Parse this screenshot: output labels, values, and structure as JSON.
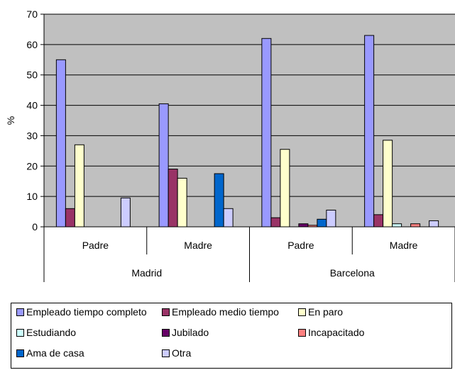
{
  "chart_data": {
    "type": "bar",
    "ylabel": "%",
    "ylim": [
      0,
      70
    ],
    "yticks": [
      0,
      10,
      20,
      30,
      40,
      50,
      60,
      70
    ],
    "grid": "horizontal",
    "legend_position": "bottom",
    "groups": [
      {
        "city": "Madrid",
        "subgroups": [
          "Padre",
          "Madre"
        ]
      },
      {
        "city": "Barcelona",
        "subgroups": [
          "Padre",
          "Madre"
        ]
      }
    ],
    "categories": [
      "Padre",
      "Madre",
      "Padre",
      "Madre"
    ],
    "series": [
      {
        "name": "Empleado tiempo completo",
        "color": "#9999ff",
        "values": [
          55,
          40.5,
          62,
          63
        ]
      },
      {
        "name": "Empleado medio tiempo",
        "color": "#993366",
        "values": [
          6,
          19,
          3,
          4
        ]
      },
      {
        "name": "En paro",
        "color": "#ffffcc",
        "values": [
          27,
          16,
          25.5,
          28.5
        ]
      },
      {
        "name": "Estudiando",
        "color": "#ccffff",
        "values": [
          0,
          0,
          0,
          1
        ]
      },
      {
        "name": "Jubilado",
        "color": "#660066",
        "values": [
          0,
          0,
          1,
          0
        ]
      },
      {
        "name": "Incapacitado",
        "color": "#ff8080",
        "values": [
          0,
          0,
          0.5,
          1
        ]
      },
      {
        "name": "Ama de casa",
        "color": "#0066cc",
        "values": [
          0,
          17.5,
          2.5,
          0
        ]
      },
      {
        "name": "Otra",
        "color": "#ccccff",
        "values": [
          9.5,
          6,
          5.5,
          2
        ]
      }
    ]
  }
}
